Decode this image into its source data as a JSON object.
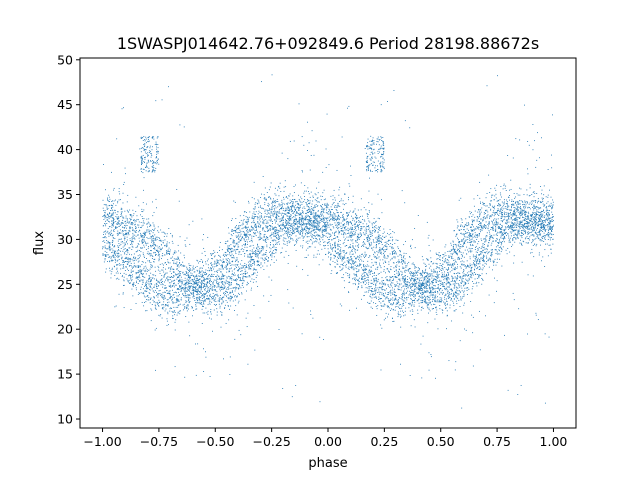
{
  "chart_data": {
    "type": "scatter",
    "title": "1SWASPJ014642.76+092849.6 Period 28198.88672s",
    "xlabel": "phase",
    "ylabel": "flux",
    "xlim": [
      -1.1,
      1.1
    ],
    "ylim": [
      9.0,
      50.2
    ],
    "x_ticks": [
      -1.0,
      -0.75,
      -0.5,
      -0.25,
      0.0,
      0.25,
      0.5,
      0.75,
      1.0
    ],
    "x_tick_labels": [
      "−1.00",
      "−0.75",
      "−0.50",
      "−0.25",
      "0.00",
      "0.25",
      "0.50",
      "0.75",
      "1.00"
    ],
    "y_ticks": [
      10,
      15,
      20,
      25,
      30,
      35,
      40,
      45,
      50
    ],
    "y_tick_labels": [
      "10",
      "15",
      "20",
      "25",
      "30",
      "35",
      "40",
      "45",
      "50"
    ],
    "grid": false,
    "legend": "none",
    "marker_color": "#1f77b4",
    "phase_fold": {
      "period_shown": "28198.88672s",
      "repeats": "phase -1 to 0 repeats phase 0 to 1"
    },
    "series": [
      {
        "envelope": {
          "phase": [
            0.0,
            0.1,
            0.2,
            0.3,
            0.4,
            0.45,
            0.5,
            0.55,
            0.6,
            0.7,
            0.8,
            0.9,
            1.0
          ],
          "upper_band_flux": [
            32.5,
            31.5,
            30.0,
            27.5,
            25.0,
            24.0,
            24.0,
            24.5,
            25.5,
            28.5,
            31.5,
            32.5,
            32.5
          ],
          "lower_band_flux": [
            29.0,
            27.5,
            25.0,
            23.5,
            24.5,
            25.0,
            26.5,
            28.0,
            30.0,
            32.5,
            33.0,
            32.0,
            31.0
          ]
        },
        "feature_clusters": [
          {
            "phase_range": [
              0.17,
              0.25
            ],
            "flux_range": [
              37.5,
              41.5
            ]
          },
          {
            "phase_range": [
              -0.83,
              -0.75
            ],
            "flux_range": [
              37.5,
              41.5
            ]
          }
        ],
        "scatter_flux_range": [
          11.0,
          48.5
        ],
        "approx_points_per_cycle": 4200
      }
    ]
  }
}
